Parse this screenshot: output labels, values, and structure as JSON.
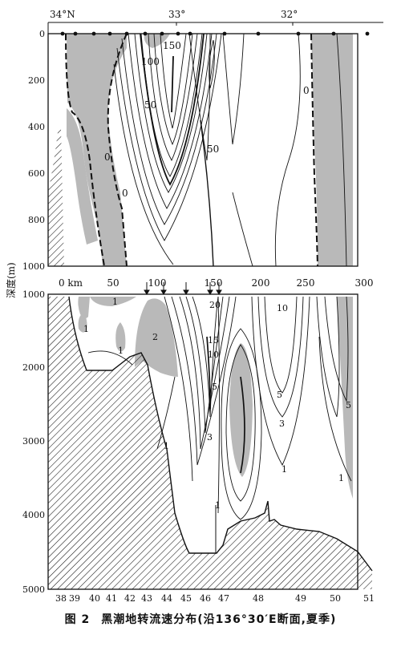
{
  "top_axis": {
    "lat_labels": [
      "34°N",
      "33°",
      "32°"
    ]
  },
  "depth_axis": {
    "label": "深度(m)",
    "upper_ticks": [
      "0",
      "200",
      "400",
      "600",
      "800",
      "1000"
    ],
    "lower_ticks": [
      "1000",
      "2000",
      "3000",
      "4000",
      "5000"
    ]
  },
  "distance_axis": {
    "ticks": [
      "0 km",
      "50",
      "100",
      "150",
      "200",
      "250",
      "300"
    ]
  },
  "stations": [
    "38",
    "39",
    "40",
    "41",
    "42",
    "43",
    "44",
    "45",
    "46",
    "47",
    "48",
    "49",
    "50",
    "51"
  ],
  "upper_labels": [
    "150",
    "100",
    "50",
    "50",
    "0",
    "0",
    "0"
  ],
  "lower_labels": [
    "1",
    "1",
    "1",
    "2",
    "1",
    "20",
    "15",
    "10",
    "10",
    "5",
    "3",
    "1",
    "5",
    "3",
    "1",
    "5",
    "1"
  ],
  "caption": {
    "number": "图 2",
    "text": "黑潮地转流速分布(沿136°30′E断面,夏季)"
  },
  "colors": {
    "ink": "#111111",
    "shade": "#b9b9b9",
    "paper": "#ffffff"
  }
}
